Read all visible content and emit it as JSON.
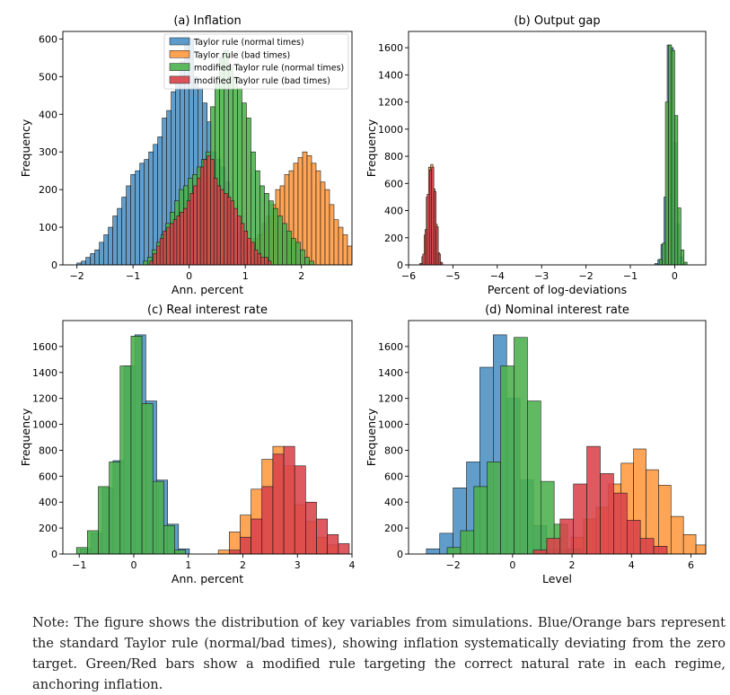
{
  "colors": {
    "blue": "#4a90c4",
    "orange": "#ff993e",
    "green": "#4bb14b",
    "red": "#d9434a"
  },
  "chart_data": [
    {
      "type": "bar",
      "subtype": "histogram",
      "title": "(a) Inflation",
      "xlabel": "Ann. percent",
      "ylabel": "Frequency",
      "xlim": [
        -2.25,
        2.9
      ],
      "ylim": [
        0,
        620
      ],
      "xticks": [
        -2,
        -1,
        0,
        1,
        2
      ],
      "yticks": [
        0,
        100,
        200,
        300,
        400,
        500,
        600
      ],
      "legend": "top-right",
      "series": [
        {
          "name": "Taylor rule (normal times)",
          "color": "blue",
          "bin_start": -2.0,
          "bin_width": 0.08,
          "values": [
            5,
            10,
            20,
            30,
            40,
            60,
            80,
            100,
            130,
            150,
            180,
            210,
            240,
            250,
            270,
            280,
            300,
            320,
            340,
            390,
            410,
            460,
            500,
            540,
            590,
            600,
            500,
            470,
            430,
            380,
            300,
            280,
            260,
            220,
            170,
            120,
            90,
            60,
            40,
            20,
            10
          ]
        },
        {
          "name": "Taylor rule (bad times)",
          "color": "orange",
          "bin_start": 0.9,
          "bin_width": 0.08,
          "values": [
            20,
            40,
            55,
            70,
            80,
            110,
            130,
            160,
            200,
            210,
            240,
            250,
            270,
            285,
            300,
            290,
            270,
            250,
            220,
            200,
            160,
            120,
            100,
            80,
            50,
            30,
            20,
            10
          ]
        },
        {
          "name": "modified Taylor rule (normal times)",
          "color": "green",
          "bin_start": -0.82,
          "bin_width": 0.08,
          "values": [
            10,
            20,
            40,
            60,
            80,
            110,
            140,
            170,
            200,
            210,
            230,
            240,
            260,
            280,
            300,
            420,
            480,
            550,
            570,
            530,
            500,
            470,
            430,
            390,
            300,
            250,
            210,
            190,
            170,
            150,
            130,
            110,
            90,
            70,
            60,
            40,
            20,
            10
          ]
        },
        {
          "name": "modified Taylor rule (bad times)",
          "color": "red",
          "bin_start": -0.7,
          "bin_width": 0.06,
          "values": [
            10,
            30,
            50,
            70,
            90,
            100,
            110,
            120,
            130,
            140,
            150,
            170,
            190,
            210,
            230,
            260,
            280,
            290,
            280,
            230,
            210,
            200,
            190,
            180,
            170,
            150,
            130,
            110,
            90,
            70,
            60,
            40,
            30,
            20,
            20,
            10
          ]
        }
      ]
    },
    {
      "type": "bar",
      "subtype": "histogram",
      "title": "(b) Output gap",
      "xlabel": "Percent of log-deviations",
      "ylabel": "Frequency",
      "xlim": [
        -6.0,
        0.7
      ],
      "ylim": [
        0,
        1720
      ],
      "xticks": [
        -6,
        -5,
        -4,
        -3,
        -2,
        -1,
        0
      ],
      "yticks": [
        0,
        200,
        400,
        600,
        800,
        1000,
        1200,
        1400,
        1600
      ],
      "series": [
        {
          "name": "Taylor rule (normal times)",
          "color": "blue",
          "bin_start": -0.45,
          "bin_width": 0.07,
          "values": [
            10,
            40,
            150,
            500,
            1620,
            1600,
            900,
            300,
            60,
            10
          ]
        },
        {
          "name": "Taylor rule (bad times)",
          "color": "orange",
          "bin_start": -5.75,
          "bin_width": 0.05,
          "values": [
            10,
            60,
            220,
            500,
            720,
            740,
            560,
            300,
            90,
            20
          ]
        },
        {
          "name": "modified Taylor rule (normal times)",
          "color": "green",
          "bin_start": -0.35,
          "bin_width": 0.07,
          "values": [
            40,
            160,
            1200,
            1620,
            1580,
            1100,
            420,
            110,
            20
          ]
        },
        {
          "name": "modified Taylor rule (bad times)",
          "color": "red",
          "bin_start": -5.73,
          "bin_width": 0.05,
          "values": [
            10,
            80,
            260,
            520,
            700,
            720,
            540,
            280,
            80,
            15
          ]
        }
      ]
    },
    {
      "type": "bar",
      "subtype": "histogram",
      "title": "(c) Real interest rate",
      "xlabel": "Ann. percent",
      "ylabel": "Frequency",
      "xlim": [
        -1.3,
        4.0
      ],
      "ylim": [
        0,
        1800
      ],
      "xticks": [
        -1,
        0,
        1,
        2,
        3,
        4
      ],
      "yticks": [
        0,
        200,
        400,
        600,
        800,
        1000,
        1200,
        1400,
        1600
      ],
      "series": [
        {
          "name": "Taylor rule (normal times)",
          "color": "blue",
          "bin_start": -0.98,
          "bin_width": 0.2,
          "values": [
            40,
            160,
            510,
            720,
            1450,
            1690,
            1180,
            570,
            230,
            40
          ]
        },
        {
          "name": "Taylor rule (bad times)",
          "color": "orange",
          "bin_start": 1.55,
          "bin_width": 0.2,
          "values": [
            30,
            170,
            300,
            500,
            730,
            830,
            680,
            380,
            250,
            130,
            70
          ]
        },
        {
          "name": "modified Taylor rule (normal times)",
          "color": "green",
          "bin_start": -1.05,
          "bin_width": 0.2,
          "values": [
            50,
            180,
            520,
            710,
            1450,
            1680,
            1160,
            560,
            220,
            30
          ]
        },
        {
          "name": "modified Taylor rule (bad times)",
          "color": "red",
          "bin_start": 1.75,
          "bin_width": 0.2,
          "values": [
            30,
            130,
            270,
            520,
            770,
            830,
            680,
            400,
            270,
            150,
            80
          ]
        }
      ]
    },
    {
      "type": "bar",
      "subtype": "histogram",
      "title": "(d) Nominal interest rate",
      "xlabel": "Level",
      "ylabel": "Frequency",
      "xlim": [
        -3.5,
        6.5
      ],
      "ylim": [
        0,
        1800
      ],
      "xticks": [
        -2,
        0,
        2,
        4,
        6
      ],
      "yticks": [
        0,
        200,
        400,
        600,
        800,
        1000,
        1200,
        1400,
        1600
      ],
      "series": [
        {
          "name": "Taylor rule (normal times)",
          "color": "blue",
          "bin_start": -2.9,
          "bin_width": 0.45,
          "values": [
            40,
            160,
            510,
            710,
            1440,
            1690,
            1200,
            570,
            220,
            40
          ]
        },
        {
          "name": "Taylor rule (bad times)",
          "color": "orange",
          "bin_start": 1.55,
          "bin_width": 0.42,
          "values": [
            30,
            130,
            270,
            360,
            540,
            700,
            810,
            650,
            530,
            290,
            150,
            70
          ]
        },
        {
          "name": "modified Taylor rule (normal times)",
          "color": "green",
          "bin_start": -2.2,
          "bin_width": 0.45,
          "values": [
            50,
            180,
            520,
            710,
            1450,
            1670,
            1180,
            560,
            230,
            40
          ]
        },
        {
          "name": "modified Taylor rule (bad times)",
          "color": "red",
          "bin_start": 0.7,
          "bin_width": 0.45,
          "values": [
            30,
            120,
            270,
            540,
            830,
            620,
            470,
            260,
            120,
            60
          ]
        }
      ]
    }
  ],
  "note": "Note: The figure shows the distribution of key variables from simulations. Blue/Orange bars represent the standard Taylor rule (normal/bad times), showing inflation systematically deviating from the zero target. Green/Red bars show a modified rule targeting the correct natural rate in each regime, anchoring inflation."
}
